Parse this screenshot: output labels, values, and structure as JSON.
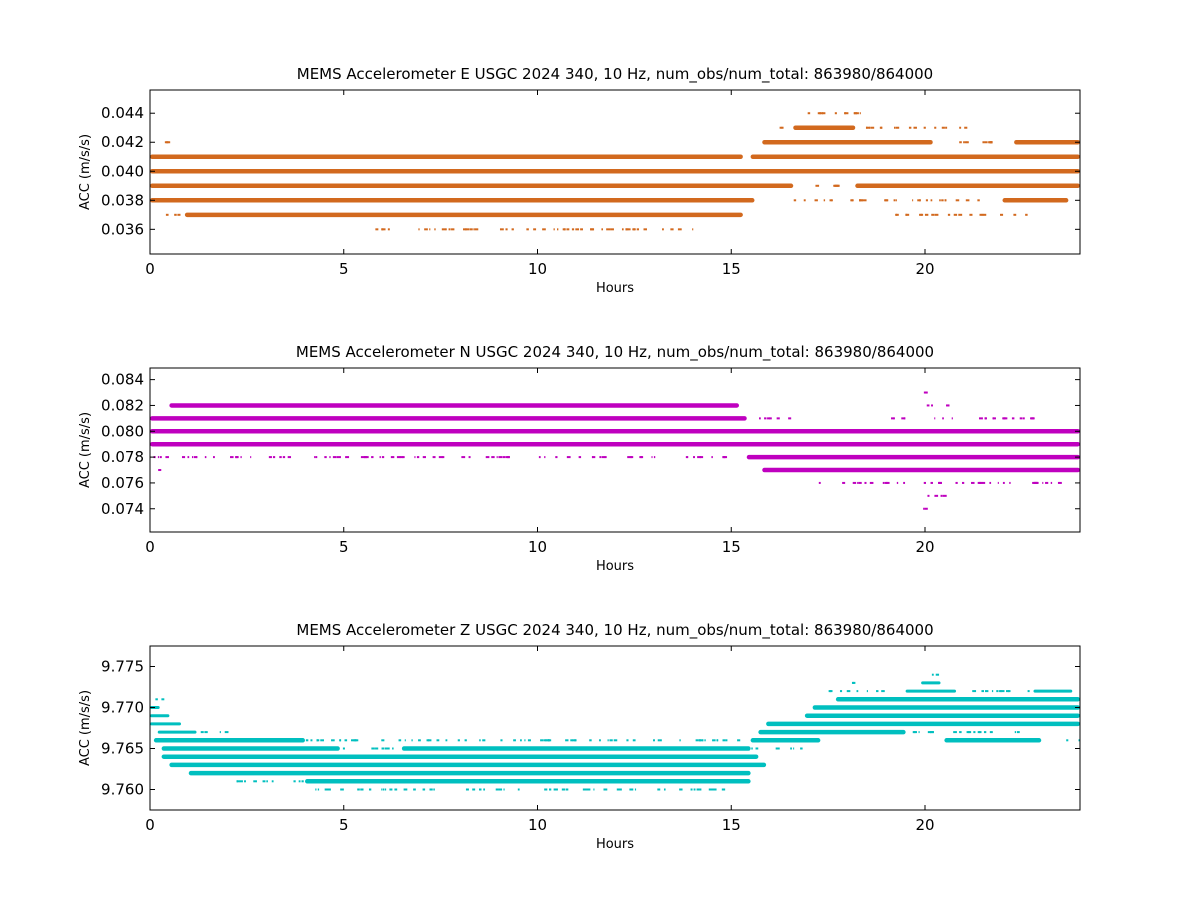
{
  "figure": {
    "background": "#ffffff"
  },
  "chart_data": [
    {
      "type": "scatter",
      "title": "MEMS Accelerometer E USGC 2024 340, 10 Hz, num_obs/num_total: 863980/864000",
      "xlabel": "Hours",
      "ylabel": "ACC (m/s/s)",
      "xlim": [
        0,
        24
      ],
      "ylim": [
        0.0343,
        0.0456
      ],
      "xticks": [
        0,
        5,
        10,
        15,
        20
      ],
      "xtick_labels": [
        "0",
        "5",
        "10",
        "15",
        "20"
      ],
      "yticks": [
        0.036,
        0.038,
        0.04,
        0.042,
        0.044
      ],
      "ytick_labels": [
        "0.036",
        "0.038",
        "0.040",
        "0.042",
        "0.044"
      ],
      "grid": false,
      "color": "#d2691e",
      "bands": [
        {
          "y": 0.041,
          "segments": [
            [
              0,
              15.3
            ],
            [
              15.5,
              24
            ]
          ],
          "sparse": []
        },
        {
          "y": 0.04,
          "segments": [
            [
              0,
              24
            ]
          ],
          "sparse": []
        },
        {
          "y": 0.039,
          "segments": [
            [
              0,
              16.6
            ],
            [
              18.2,
              24
            ]
          ],
          "sparse": [
            [
              17.0,
              18.0
            ]
          ]
        },
        {
          "y": 0.038,
          "segments": [
            [
              0,
              15.6
            ],
            [
              22.0,
              23.7
            ]
          ],
          "sparse": [
            [
              16.0,
              21.5
            ]
          ]
        },
        {
          "y": 0.037,
          "segments": [
            [
              0.9,
              15.3
            ]
          ],
          "sparse": [
            [
              0.4,
              0.9
            ],
            [
              19.2,
              22.6
            ]
          ]
        },
        {
          "y": 0.042,
          "segments": [
            [
              15.8,
              20.2
            ],
            [
              22.3,
              24
            ]
          ],
          "sparse": [
            [
              0.1,
              0.5
            ],
            [
              20.4,
              22.3
            ]
          ]
        },
        {
          "y": 0.043,
          "segments": [
            [
              16.6,
              18.2
            ]
          ],
          "sparse": [
            [
              16.2,
              16.6
            ],
            [
              18.2,
              21.1
            ]
          ]
        },
        {
          "y": 0.044,
          "segments": [],
          "sparse": [
            [
              16.7,
              18.8
            ]
          ]
        },
        {
          "y": 0.036,
          "segments": [],
          "sparse": [
            [
              5.6,
              14.2
            ]
          ]
        }
      ]
    },
    {
      "type": "scatter",
      "title": "MEMS Accelerometer N USGC 2024 340, 10 Hz, num_obs/num_total: 863980/864000",
      "xlabel": "Hours",
      "ylabel": "ACC (m/s/s)",
      "xlim": [
        0,
        24
      ],
      "ylim": [
        0.0722,
        0.0849
      ],
      "xticks": [
        0,
        5,
        10,
        15,
        20
      ],
      "xtick_labels": [
        "0",
        "5",
        "10",
        "15",
        "20"
      ],
      "yticks": [
        0.074,
        0.076,
        0.078,
        0.08,
        0.082,
        0.084
      ],
      "ytick_labels": [
        "0.074",
        "0.076",
        "0.078",
        "0.080",
        "0.082",
        "0.084"
      ],
      "grid": false,
      "color": "#bf00bf",
      "bands": [
        {
          "y": 0.079,
          "segments": [
            [
              0,
              24
            ]
          ],
          "sparse": []
        },
        {
          "y": 0.08,
          "segments": [
            [
              0,
              24
            ]
          ],
          "sparse": []
        },
        {
          "y": 0.081,
          "segments": [
            [
              0,
              15.4
            ]
          ],
          "sparse": [
            [
              15.4,
              16.5
            ],
            [
              19.0,
              22.8
            ]
          ]
        },
        {
          "y": 0.078,
          "segments": [
            [
              15.4,
              24
            ]
          ],
          "sparse": [
            [
              0,
              15.4
            ]
          ]
        },
        {
          "y": 0.077,
          "segments": [
            [
              15.8,
              24
            ]
          ],
          "sparse": [
            [
              0.1,
              0.3
            ]
          ]
        },
        {
          "y": 0.082,
          "segments": [
            [
              0.5,
              15.2
            ]
          ],
          "sparse": [
            [
              19.9,
              20.7
            ]
          ]
        },
        {
          "y": 0.076,
          "segments": [],
          "sparse": [
            [
              17.2,
              23.5
            ]
          ]
        },
        {
          "y": 0.083,
          "segments": [],
          "sparse": [
            [
              19.9,
              20.0
            ]
          ]
        },
        {
          "y": 0.075,
          "segments": [],
          "sparse": [
            [
              19.9,
              20.7
            ]
          ]
        },
        {
          "y": 0.074,
          "segments": [],
          "sparse": [
            [
              19.9,
              20.0
            ]
          ]
        }
      ]
    },
    {
      "type": "scatter",
      "title": "MEMS Accelerometer Z USGC 2024 340, 10 Hz, num_obs/num_total: 863980/864000",
      "xlabel": "Hours",
      "ylabel": "ACC (m/s/s)",
      "xlim": [
        0,
        24
      ],
      "ylim": [
        9.7575,
        9.7775
      ],
      "xticks": [
        0,
        5,
        10,
        15,
        20
      ],
      "xtick_labels": [
        "0",
        "5",
        "10",
        "15",
        "20"
      ],
      "yticks": [
        9.76,
        9.765,
        9.77,
        9.775
      ],
      "ytick_labels": [
        "9.760",
        "9.765",
        "9.770",
        "9.775"
      ],
      "grid": false,
      "color": "#00bfbf",
      "bands": [
        {
          "y": 9.771,
          "segments": [],
          "sparse": [
            [
              0,
              0.3
            ]
          ]
        },
        {
          "y": 9.77,
          "segments": [
            [
              0,
              0.25
            ]
          ],
          "sparse": []
        },
        {
          "y": 9.769,
          "segments": [
            [
              0,
              0.5
            ]
          ],
          "sparse": []
        },
        {
          "y": 9.768,
          "segments": [
            [
              0,
              0.8
            ]
          ],
          "sparse": []
        },
        {
          "y": 9.767,
          "segments": [
            [
              0.2,
              1.2
            ]
          ],
          "sparse": [
            [
              1.2,
              2.0
            ]
          ]
        },
        {
          "y": 9.766,
          "segments": [
            [
              0.1,
              4.0
            ],
            [
              15.5,
              17.3
            ]
          ],
          "sparse": [
            [
              4.0,
              15.5
            ]
          ]
        },
        {
          "y": 9.765,
          "segments": [
            [
              0.3,
              4.9
            ],
            [
              6.5,
              15.5
            ]
          ],
          "sparse": [
            [
              4.9,
              6.5
            ],
            [
              15.5,
              17.0
            ]
          ]
        },
        {
          "y": 9.764,
          "segments": [
            [
              0.3,
              15.7
            ]
          ],
          "sparse": []
        },
        {
          "y": 9.763,
          "segments": [
            [
              0.5,
              15.9
            ]
          ],
          "sparse": []
        },
        {
          "y": 9.762,
          "segments": [
            [
              1.0,
              15.5
            ]
          ],
          "sparse": []
        },
        {
          "y": 9.761,
          "segments": [
            [
              4.0,
              15.5
            ]
          ],
          "sparse": [
            [
              2.1,
              4.0
            ]
          ]
        },
        {
          "y": 9.76,
          "segments": [],
          "sparse": [
            [
              4.1,
              14.8
            ]
          ]
        },
        {
          "y": 9.767,
          "segments": [
            [
              15.7,
              19.5
            ]
          ],
          "sparse": [
            [
              19.5,
              22.5
            ]
          ]
        },
        {
          "y": 9.768,
          "segments": [
            [
              15.9,
              24
            ]
          ],
          "sparse": []
        },
        {
          "y": 9.769,
          "segments": [
            [
              16.9,
              24
            ]
          ],
          "sparse": []
        },
        {
          "y": 9.77,
          "segments": [
            [
              17.1,
              24
            ]
          ],
          "sparse": []
        },
        {
          "y": 9.771,
          "segments": [
            [
              17.7,
              24
            ]
          ],
          "sparse": []
        },
        {
          "y": 9.772,
          "segments": [
            [
              19.5,
              20.8
            ],
            [
              22.8,
              23.8
            ]
          ],
          "sparse": [
            [
              17.5,
              19.0
            ],
            [
              20.8,
              22.8
            ]
          ]
        },
        {
          "y": 9.773,
          "segments": [
            [
              19.9,
              20.4
            ]
          ],
          "sparse": [
            [
              17.8,
              18.2
            ]
          ]
        },
        {
          "y": 9.774,
          "segments": [],
          "sparse": [
            [
              20.1,
              20.4
            ]
          ]
        },
        {
          "y": 9.766,
          "segments": [
            [
              20.5,
              23.0
            ]
          ],
          "sparse": [
            [
              23.6,
              24
            ]
          ]
        }
      ]
    }
  ]
}
